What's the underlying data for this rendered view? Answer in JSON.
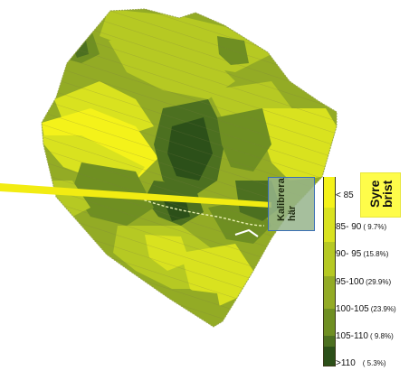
{
  "map": {
    "colors": {
      "c85": "#f4f21a",
      "c90": "#d9e21f",
      "c95": "#b6c923",
      "c100": "#93ab25",
      "c105": "#6f8f22",
      "c110": "#4c7020",
      "c110plus": "#2c5019",
      "tramline": "#6f6f3a",
      "pointer_line": "#f2ec12"
    }
  },
  "calibration": {
    "label_line1": "Kalibrera",
    "label_line2": "här"
  },
  "callout": {
    "line1": "Syre",
    "line2": "brist"
  },
  "legend": {
    "items": [
      {
        "range": "< 85",
        "pct": "",
        "color": "#f4f21a"
      },
      {
        "range": "85- 90",
        "pct": "( 9.7%)",
        "color": "#d9e21f"
      },
      {
        "range": "90- 95",
        "pct": "(15.8%)",
        "color": "#b6c923"
      },
      {
        "range": "95-100",
        "pct": "(29.9%)",
        "color": "#93ab25"
      },
      {
        "range": "100-105",
        "pct": "(23.9%)",
        "color": "#6f8f22"
      },
      {
        "range": "105-110",
        "pct": "( 9.8%)",
        "color": "#4c7020"
      },
      {
        "range": ">110",
        "pct": "( 5.3%)",
        "color": "#2c5019"
      }
    ]
  }
}
